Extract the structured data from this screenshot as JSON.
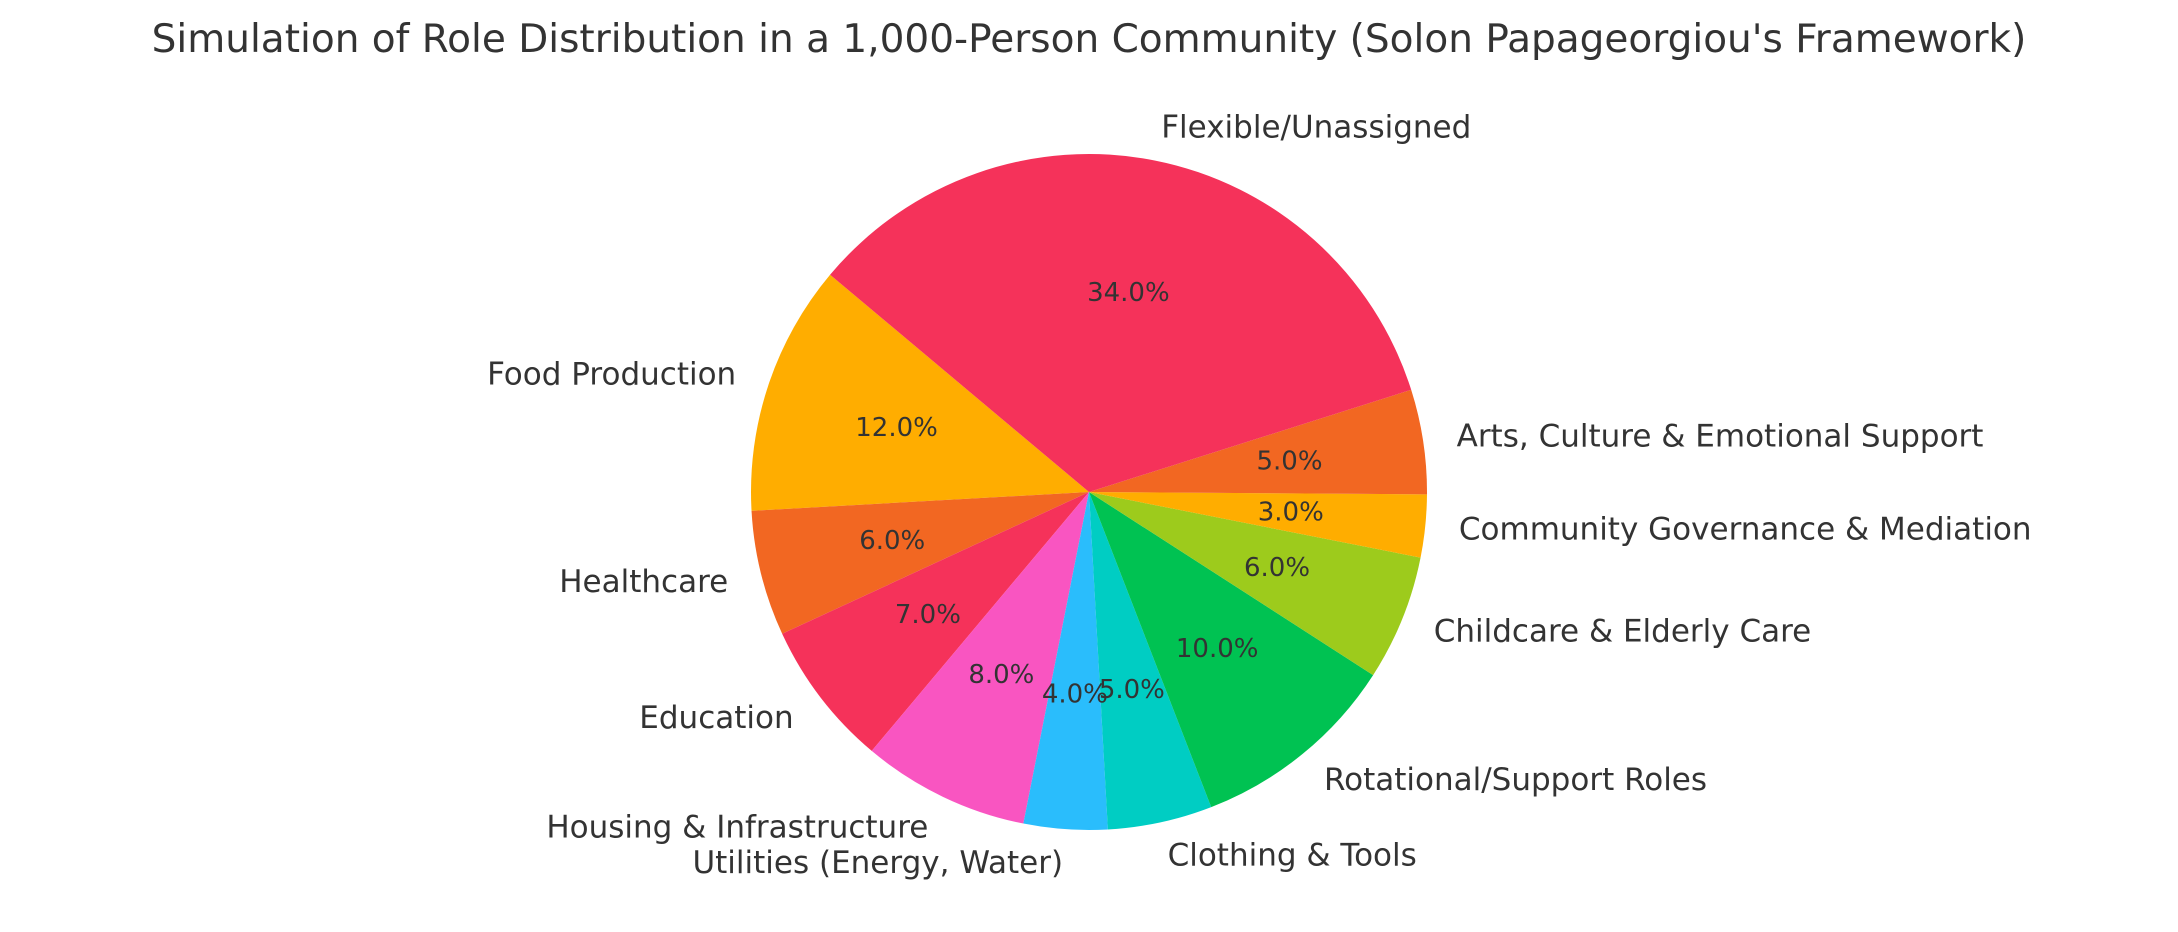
{
  "chart_data": {
    "type": "pie",
    "title": "Simulation of Role Distribution in a 1,000-Person Community (Solon Papageorgiou's Framework)",
    "categories": [
      "Food Production",
      "Healthcare",
      "Education",
      "Housing & Infrastructure",
      "Utilities (Energy, Water)",
      "Clothing & Tools",
      "Rotational/Support Roles",
      "Childcare & Elderly Care",
      "Community Governance & Mediation",
      "Arts, Culture & Emotional Support",
      "Flexible/Unassigned"
    ],
    "values": [
      12.0,
      6.0,
      7.0,
      8.0,
      4.0,
      5.0,
      10.0,
      6.0,
      3.0,
      5.0,
      34.0
    ],
    "value_labels": [
      "12.0%",
      "6.0%",
      "7.0%",
      "8.0%",
      "4.0%",
      "5.0%",
      "10.0%",
      "6.0%",
      "3.0%",
      "5.0%",
      "34.0%"
    ],
    "colors": [
      "#ffad00",
      "#f26722",
      "#f5325a",
      "#f955c1",
      "#2abdfc",
      "#00cdc3",
      "#00c252",
      "#9dcb1c",
      "#ffad00",
      "#f26722",
      "#f5325a"
    ],
    "start_angle_deg": 140,
    "direction": "counterclockwise"
  }
}
